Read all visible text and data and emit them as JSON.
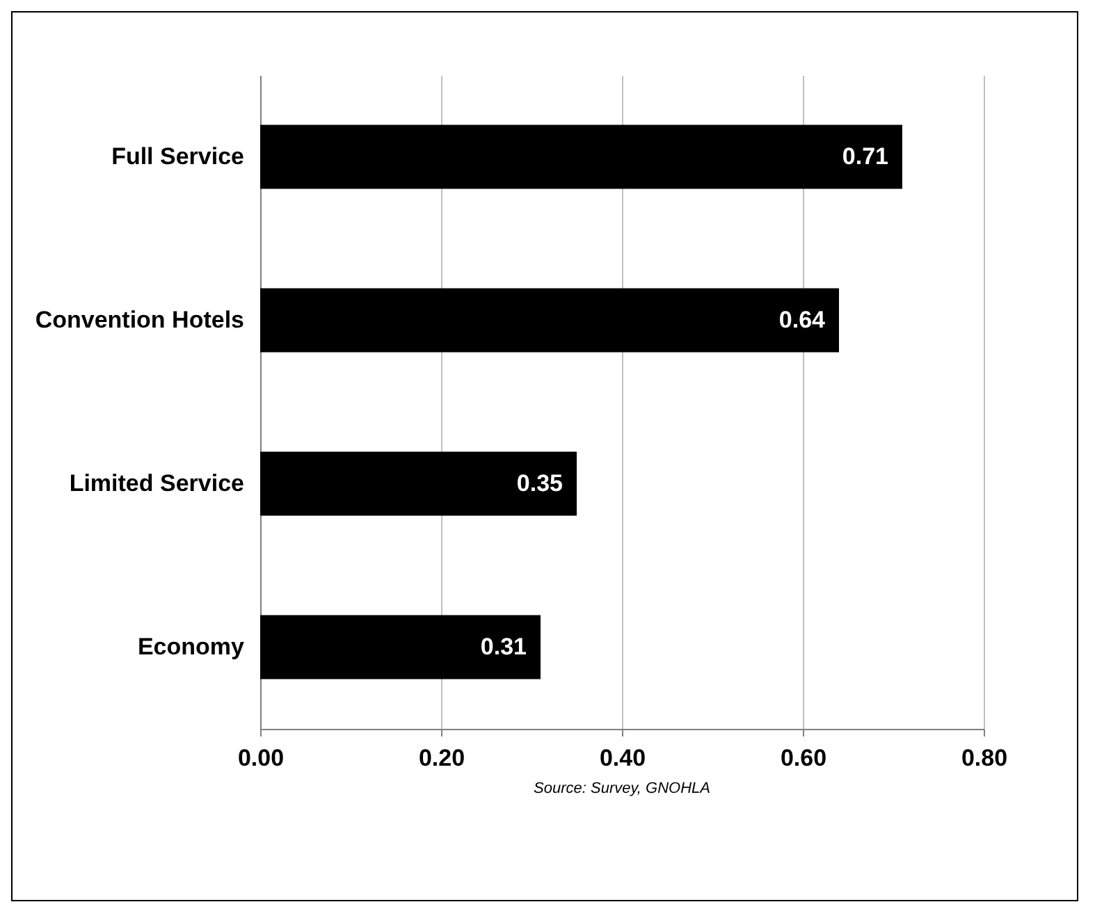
{
  "chart_data": {
    "type": "bar",
    "orientation": "horizontal",
    "categories": [
      "Full Service",
      "Convention Hotels",
      "Limited Service",
      "Economy"
    ],
    "values": [
      0.71,
      0.64,
      0.35,
      0.31
    ],
    "color": "#000000",
    "xlim": [
      0,
      0.8
    ],
    "xticks": [
      {
        "value": 0,
        "label": "0.00"
      },
      {
        "value": 0.2,
        "label": "0.20"
      },
      {
        "value": 0.4,
        "label": "0.40"
      },
      {
        "value": 0.6,
        "label": "0.60"
      },
      {
        "value": 0.8,
        "label": "0.80"
      }
    ],
    "data_labels": true,
    "grid": "x",
    "annotations": [
      "Source: Survey, GNOHLA"
    ]
  }
}
